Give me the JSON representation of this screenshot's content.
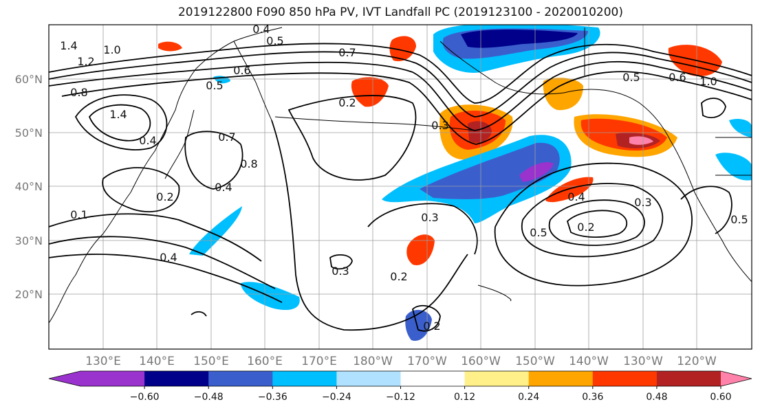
{
  "title": "2019122800 F090 850 hPa PV, IVT Landfall PC (2019123100 - 2020010200)",
  "lat_labels": [
    "60°N",
    "50°N",
    "40°N",
    "30°N",
    "20°N"
  ],
  "lon_labels": [
    "130°E",
    "140°E",
    "150°E",
    "160°E",
    "170°E",
    "180°W",
    "170°W",
    "160°W",
    "150°W",
    "140°W",
    "130°W",
    "120°W"
  ],
  "colorbar": {
    "ticks": [
      "−0.60",
      "−0.48",
      "−0.36",
      "−0.24",
      "−0.12",
      "0.12",
      "0.24",
      "0.36",
      "0.48",
      "0.60"
    ],
    "colors": [
      "#9a32cd",
      "#00008b",
      "#3a5fcd",
      "#00bfff",
      "#b0e2ff",
      "#ffffff",
      "#fff08a",
      "#ffa500",
      "#ff3800",
      "#b22222",
      "#ff82ab"
    ]
  },
  "contour_labels": [
    "0.4",
    "0.5",
    "0.7",
    "1.4",
    "1.2",
    "1.0",
    "0.8",
    "1.4",
    "0.6",
    "0.5",
    "0.2",
    "0.7",
    "0.8",
    "0.4",
    "0.2",
    "0.1",
    "0.3",
    "0.3",
    "0.2",
    "0.4",
    "0.5",
    "0.2",
    "0.3",
    "0.2",
    "0.5",
    "0.6",
    "1.0",
    "0.5",
    "0.4",
    "0.4",
    "0.3"
  ],
  "features": {
    "shading_field": "IVT landfall PC",
    "contour_field": "850 hPa PV",
    "coastlines": "black"
  }
}
